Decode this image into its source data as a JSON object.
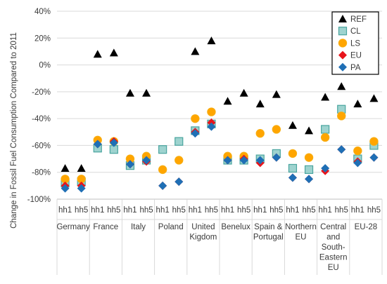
{
  "chart_data": {
    "type": "scatter",
    "ylabel": "Change in Fossil Fuel Consumption Compared to 2011",
    "ylim": [
      -100,
      40
    ],
    "yticks": [
      -100,
      -80,
      -60,
      -40,
      -20,
      0,
      20,
      40
    ],
    "ytick_suffix": "%",
    "grid": true,
    "legend_position": "top-right",
    "x": [
      "hh1",
      "hh5",
      "hh1",
      "hh5",
      "hh1",
      "hh5",
      "hh1",
      "hh5",
      "hh1",
      "hh5",
      "hh1",
      "hh5",
      "hh1",
      "hh5",
      "hh1",
      "hh5",
      "hh1",
      "hh5",
      "hh1",
      "hh5"
    ],
    "groups": [
      {
        "label": [
          "Germany"
        ]
      },
      {
        "label": [
          "France"
        ]
      },
      {
        "label": [
          "Italy"
        ]
      },
      {
        "label": [
          "Poland"
        ]
      },
      {
        "label": [
          "United",
          "Kigdom"
        ]
      },
      {
        "label": [
          "Benelux"
        ]
      },
      {
        "label": [
          "Spain &",
          "Portugal"
        ]
      },
      {
        "label": [
          "Northern",
          "EU"
        ]
      },
      {
        "label": [
          "Central",
          "and",
          "South-",
          "Eastern",
          "EU"
        ]
      },
      {
        "label": [
          "EU-28"
        ]
      }
    ],
    "series": [
      {
        "name": "REF",
        "marker": "triangle",
        "color": "#000000",
        "values": [
          -77,
          -77,
          8,
          9,
          -21,
          -21,
          -63,
          -57,
          10,
          18,
          -27,
          -21,
          -29,
          -22,
          -45,
          -49,
          -24,
          -16,
          -29,
          -25
        ]
      },
      {
        "name": "CL",
        "marker": "square",
        "color": "#9ed3cf",
        "values": [
          -88,
          -87,
          -62,
          -63,
          -75,
          -71,
          -63,
          -57,
          -49,
          -44,
          -71,
          -71,
          -70,
          -66,
          -77,
          -78,
          -48,
          -33,
          -70,
          -60
        ]
      },
      {
        "name": "LS",
        "marker": "circle",
        "color": "#ffa500",
        "values": [
          -85,
          -85,
          -56,
          -57,
          -70,
          -68,
          -78,
          -71,
          -40,
          -35,
          -68,
          -68,
          -51,
          -48,
          -66,
          -69,
          -54,
          -38,
          -64,
          -57
        ]
      },
      {
        "name": "EU",
        "marker": "diamond",
        "color": "#e8151c",
        "values": [
          -90,
          -90,
          -59,
          -57,
          -74,
          -72,
          -90,
          -87,
          -50,
          -43,
          -71,
          -70,
          -73,
          -69,
          -84,
          -85,
          -79,
          -63,
          -72,
          -69
        ]
      },
      {
        "name": "PA",
        "marker": "diamond",
        "color": "#1f6fb5",
        "values": [
          -92,
          -92,
          -59,
          -58,
          -74,
          -71,
          -90,
          -87,
          -51,
          -46,
          -71,
          -71,
          -71,
          -69,
          -84,
          -85,
          -77,
          -63,
          -73,
          -69
        ]
      }
    ]
  }
}
